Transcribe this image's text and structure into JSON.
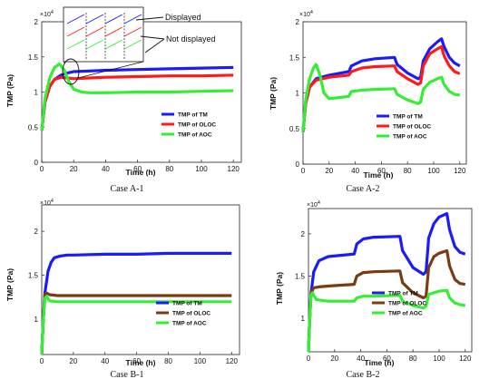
{
  "chart_data": [
    {
      "type": "line",
      "caption": "Case A-1",
      "xlabel": "Time (h)",
      "ylabel": "TMP (Pa)",
      "exponent_base": "×10",
      "exponent_power": "4",
      "xlim": [
        0,
        125
      ],
      "ylim": [
        0,
        2
      ],
      "xticks": [
        0,
        20,
        40,
        60,
        80,
        100,
        120
      ],
      "yticks": [
        0,
        0.5,
        1,
        1.5,
        2
      ],
      "ytick_labels": [
        "0",
        "0.5",
        "1",
        "1.5",
        "2"
      ],
      "legend_position": "bottom-right",
      "annotations": {
        "displayed": "Displayed",
        "not_displayed": "Not displayed"
      },
      "series": [
        {
          "name": "TMP of TM",
          "color": "#1a1aff",
          "x": [
            0,
            2,
            5,
            8,
            12,
            16,
            20,
            30,
            40,
            60,
            80,
            100,
            120
          ],
          "y": [
            0.45,
            0.85,
            1.08,
            1.18,
            1.24,
            1.27,
            1.29,
            1.3,
            1.31,
            1.32,
            1.33,
            1.34,
            1.35
          ]
        },
        {
          "name": "TMP of OLOC",
          "color": "#ff1a1a",
          "x": [
            0,
            2,
            5,
            8,
            12,
            16,
            20,
            30,
            40,
            60,
            80,
            100,
            120
          ],
          "y": [
            0.45,
            0.85,
            1.08,
            1.18,
            1.21,
            1.2,
            1.19,
            1.2,
            1.21,
            1.22,
            1.23,
            1.23,
            1.24
          ]
        },
        {
          "name": "TMP of AOC",
          "color": "#33ee33",
          "x": [
            0,
            2,
            5,
            8,
            11,
            14,
            17,
            20,
            25,
            30,
            40,
            60,
            80,
            100,
            120
          ],
          "y": [
            0.45,
            0.9,
            1.2,
            1.35,
            1.4,
            1.32,
            1.15,
            1.04,
            1.0,
            0.99,
            0.99,
            1.0,
            1.0,
            1.01,
            1.02
          ]
        }
      ]
    },
    {
      "type": "line",
      "caption": "Case A-2",
      "xlabel": "Time (h)",
      "ylabel": "TMP (Pa)",
      "exponent_base": "×10",
      "exponent_power": "4",
      "xlim": [
        0,
        125
      ],
      "ylim": [
        0,
        2
      ],
      "xticks": [
        0,
        20,
        40,
        60,
        80,
        100,
        120
      ],
      "yticks": [
        0,
        0.5,
        1,
        1.5,
        2
      ],
      "ytick_labels": [
        "0",
        "0.5",
        "1",
        "1.5",
        "2"
      ],
      "legend_position": "bottom-right",
      "series": [
        {
          "name": "TMP of TM",
          "color": "#1a1aff",
          "x": [
            0,
            2,
            5,
            10,
            20,
            35,
            37,
            45,
            55,
            70,
            72,
            80,
            88,
            90,
            92,
            97,
            103,
            106,
            108,
            112,
            116,
            120
          ],
          "y": [
            0.45,
            0.85,
            1.08,
            1.2,
            1.25,
            1.3,
            1.38,
            1.45,
            1.48,
            1.5,
            1.4,
            1.28,
            1.2,
            1.22,
            1.45,
            1.62,
            1.72,
            1.76,
            1.65,
            1.5,
            1.42,
            1.38
          ]
        },
        {
          "name": "TMP of OLOC",
          "color": "#ff1a1a",
          "x": [
            0,
            2,
            5,
            10,
            20,
            35,
            37,
            45,
            55,
            70,
            72,
            80,
            88,
            90,
            92,
            97,
            103,
            106,
            108,
            112,
            116,
            120
          ],
          "y": [
            0.45,
            0.85,
            1.08,
            1.18,
            1.22,
            1.25,
            1.3,
            1.35,
            1.37,
            1.38,
            1.3,
            1.2,
            1.12,
            1.14,
            1.38,
            1.55,
            1.62,
            1.65,
            1.52,
            1.38,
            1.3,
            1.27
          ]
        },
        {
          "name": "TMP of AOC",
          "color": "#33ee33",
          "x": [
            0,
            2,
            5,
            8,
            10,
            13,
            16,
            20,
            35,
            37,
            45,
            55,
            70,
            72,
            80,
            88,
            90,
            92,
            97,
            103,
            106,
            108,
            112,
            116,
            120
          ],
          "y": [
            0.45,
            0.9,
            1.2,
            1.35,
            1.4,
            1.25,
            1.0,
            0.92,
            0.95,
            1.02,
            1.04,
            1.05,
            1.06,
            0.98,
            0.9,
            0.85,
            0.87,
            1.05,
            1.15,
            1.2,
            1.22,
            1.12,
            1.02,
            0.98,
            0.97
          ]
        }
      ]
    },
    {
      "type": "line",
      "caption": "Case B-1",
      "xlabel": "Time (h)",
      "ylabel": "TMP (Pa)",
      "exponent_base": "×10",
      "exponent_power": "4",
      "xlim": [
        0,
        125
      ],
      "ylim": [
        0.6,
        2.3
      ],
      "xticks": [
        0,
        20,
        40,
        60,
        80,
        100,
        120
      ],
      "yticks": [
        1,
        1.5,
        2
      ],
      "ytick_labels": [
        "1",
        "1.5",
        "2"
      ],
      "legend_position": "bottom-right",
      "series": [
        {
          "name": "TMP of TM",
          "color": "#1a1aff",
          "x": [
            0,
            1,
            2,
            4,
            6,
            8,
            12,
            16,
            20,
            40,
            60,
            80,
            100,
            120
          ],
          "y": [
            0.6,
            1.0,
            1.3,
            1.55,
            1.65,
            1.7,
            1.72,
            1.73,
            1.73,
            1.74,
            1.74,
            1.75,
            1.75,
            1.75
          ]
        },
        {
          "name": "TMP of OLOC",
          "color": "#7a3b12",
          "x": [
            0,
            1,
            2,
            3,
            5,
            10,
            20,
            40,
            60,
            80,
            100,
            120
          ],
          "y": [
            0.6,
            1.0,
            1.28,
            1.3,
            1.28,
            1.27,
            1.27,
            1.27,
            1.27,
            1.27,
            1.27,
            1.27
          ]
        },
        {
          "name": "TMP of AOC",
          "color": "#33ee33",
          "x": [
            0,
            1,
            2,
            3,
            5,
            10,
            20,
            40,
            60,
            80,
            100,
            120
          ],
          "y": [
            0.6,
            1.0,
            1.24,
            1.26,
            1.21,
            1.2,
            1.2,
            1.2,
            1.2,
            1.2,
            1.2,
            1.2
          ]
        }
      ]
    },
    {
      "type": "line",
      "caption": "Case B-2",
      "xlabel": "Time (h)",
      "ylabel": "TMP (Pa)",
      "exponent_base": "×10",
      "exponent_power": "4",
      "xlim": [
        0,
        125
      ],
      "ylim": [
        0.6,
        2.3
      ],
      "xticks": [
        0,
        20,
        40,
        60,
        80,
        100,
        120
      ],
      "yticks": [
        1,
        1.5,
        2
      ],
      "ytick_labels": [
        "1",
        "1.5",
        "2"
      ],
      "legend_position": "bottom-right",
      "series": [
        {
          "name": "TMP of TM",
          "color": "#1a1aff",
          "x": [
            0,
            1,
            2,
            4,
            8,
            15,
            35,
            37,
            42,
            50,
            70,
            72,
            80,
            88,
            90,
            92,
            96,
            100,
            106,
            108,
            112,
            116,
            120
          ],
          "y": [
            0.6,
            1.0,
            1.3,
            1.55,
            1.68,
            1.73,
            1.76,
            1.88,
            1.94,
            1.96,
            1.97,
            1.8,
            1.6,
            1.52,
            1.55,
            1.95,
            2.12,
            2.2,
            2.24,
            2.05,
            1.85,
            1.78,
            1.76
          ]
        },
        {
          "name": "TMP of OLOC",
          "color": "#7a3b12",
          "x": [
            0,
            1,
            2,
            4,
            8,
            15,
            35,
            37,
            42,
            50,
            70,
            72,
            80,
            88,
            90,
            92,
            96,
            100,
            106,
            108,
            112,
            116,
            120
          ],
          "y": [
            0.6,
            1.0,
            1.3,
            1.36,
            1.37,
            1.38,
            1.4,
            1.5,
            1.54,
            1.55,
            1.56,
            1.42,
            1.3,
            1.24,
            1.26,
            1.6,
            1.73,
            1.77,
            1.8,
            1.62,
            1.46,
            1.41,
            1.4
          ]
        },
        {
          "name": "TMP of AOC",
          "color": "#33ee33",
          "x": [
            0,
            1,
            2,
            3,
            6,
            15,
            35,
            37,
            42,
            50,
            70,
            72,
            80,
            88,
            90,
            92,
            96,
            100,
            106,
            108,
            112,
            116,
            120
          ],
          "y": [
            0.6,
            1.0,
            1.28,
            1.3,
            1.22,
            1.2,
            1.2,
            1.24,
            1.26,
            1.26,
            1.27,
            1.2,
            1.15,
            1.12,
            1.14,
            1.28,
            1.3,
            1.32,
            1.33,
            1.24,
            1.18,
            1.16,
            1.15
          ]
        }
      ]
    }
  ]
}
